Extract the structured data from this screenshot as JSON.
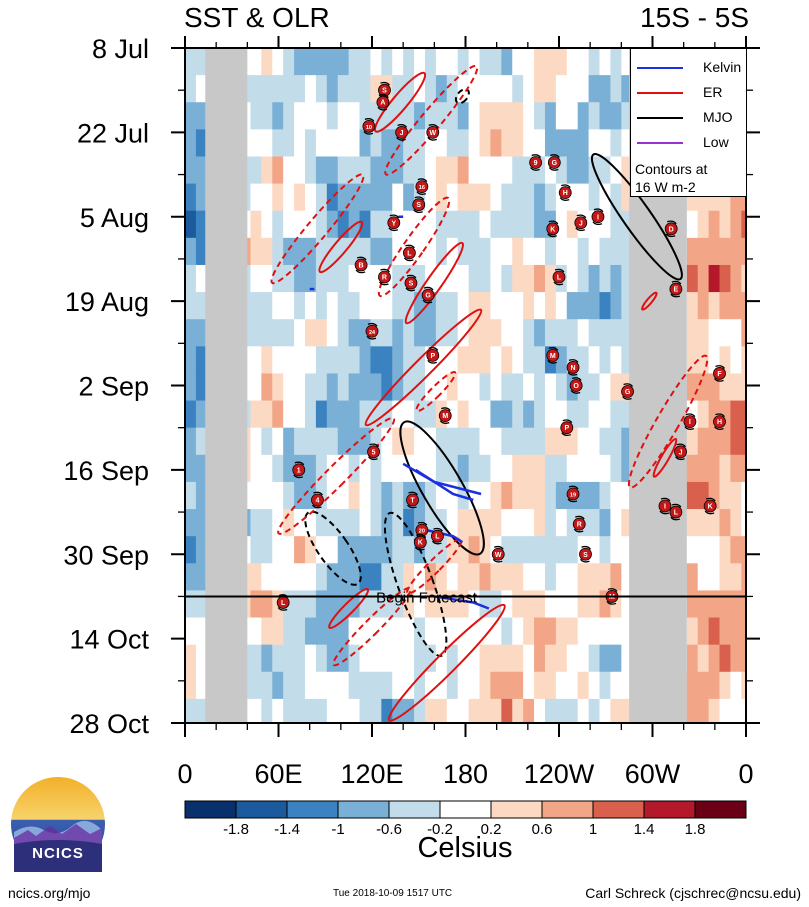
{
  "header": {
    "title_left": "SST & OLR",
    "title_right": "15S - 5S"
  },
  "colors": {
    "kelvin": "#1a2fe0",
    "er": "#e01010",
    "mjo": "#000000",
    "low": "#9b30d0",
    "land_mask": "#c8c8c8",
    "forecast_line": "#000000",
    "tc_marker": "#c41818"
  },
  "legend": {
    "items": [
      {
        "name": "Kelvin",
        "color": "#1a2fe0"
      },
      {
        "name": "ER",
        "color": "#e01010"
      },
      {
        "name": "MJO",
        "color": "#000000"
      },
      {
        "name": "Low",
        "color": "#9b30d0"
      }
    ],
    "note_line1": "Contours at",
    "note_line2": "16 W m-2"
  },
  "annotations": {
    "forecast_label": "Begin Forecast"
  },
  "colorbar": {
    "unit": "Celsius",
    "tick_labels": [
      "-1.8",
      "-1.4",
      "-1",
      "-0.6",
      "-0.2",
      "0.2",
      "0.6",
      "1",
      "1.4",
      "1.8"
    ],
    "colors": [
      "#08306b",
      "#1c5a9e",
      "#3b82c1",
      "#7ab0d6",
      "#c3dcea",
      "#ffffff",
      "#fcd9c3",
      "#f2a687",
      "#d9604d",
      "#b3182b",
      "#6a0015"
    ]
  },
  "logo": {
    "text": "NCICS"
  },
  "footer": {
    "left": "ncics.org/mjo",
    "center": "Tue 2018-10-09 1517 UTC",
    "right": "Carl Schreck (cjschrec@ncsu.edu)"
  },
  "chart_data": {
    "type": "heatmap",
    "title": "SST & OLR",
    "subtitle": "15S - 5S",
    "xlabel": "",
    "ylabel": "",
    "x_ticks": [
      {
        "lon": 0,
        "label": "0"
      },
      {
        "lon": 60,
        "label": "60E"
      },
      {
        "lon": 120,
        "label": "120E"
      },
      {
        "lon": 180,
        "label": "180"
      },
      {
        "lon": 240,
        "label": "120W"
      },
      {
        "lon": 300,
        "label": "60W"
      },
      {
        "lon": 360,
        "label": "0"
      }
    ],
    "y_ticks": [
      {
        "day": 0,
        "label": "8 Jul"
      },
      {
        "day": 14,
        "label": "22 Jul"
      },
      {
        "day": 28,
        "label": "5 Aug"
      },
      {
        "day": 42,
        "label": "19 Aug"
      },
      {
        "day": 56,
        "label": "2 Sep"
      },
      {
        "day": 70,
        "label": "16 Sep"
      },
      {
        "day": 84,
        "label": "30 Sep"
      },
      {
        "day": 98,
        "label": "14 Oct"
      },
      {
        "day": 112,
        "label": "28 Oct"
      }
    ],
    "xlim": [
      0,
      360
    ],
    "ylim_days": [
      0,
      112
    ],
    "forecast_start_day": 91,
    "colorbar_levels": [
      -1.8,
      -1.4,
      -1,
      -0.6,
      -0.2,
      0.2,
      0.6,
      1,
      1.4,
      1.8
    ],
    "masked_longitudes": [
      [
        13,
        40
      ],
      [
        285,
        322
      ]
    ],
    "contours": [
      {
        "type": "MJO",
        "style": "solid",
        "lon": 290,
        "day": 28,
        "w": 11,
        "h": 28,
        "rot": -35
      },
      {
        "type": "MJO",
        "style": "solid",
        "lon": 165,
        "day": 73,
        "w": 16,
        "h": 28,
        "rot": -30
      },
      {
        "type": "MJO",
        "style": "dashed",
        "lon": 95,
        "day": 83,
        "w": 12,
        "h": 16,
        "rot": -35
      },
      {
        "type": "MJO",
        "style": "dashed",
        "lon": 148,
        "day": 89,
        "w": 14,
        "h": 28,
        "rot": -20
      },
      {
        "type": "MJO",
        "style": "dashed",
        "lon": 178,
        "day": 8,
        "w": 4,
        "h": 3,
        "rot": 40
      },
      {
        "type": "ER",
        "style": "solid",
        "lon": 138,
        "day": 9,
        "w": 6,
        "h": 14,
        "rot": 40
      },
      {
        "type": "ER",
        "style": "dashed",
        "lon": 158,
        "day": 12,
        "w": 8,
        "h": 26,
        "rot": 40
      },
      {
        "type": "ER",
        "style": "dashed",
        "lon": 85,
        "day": 30,
        "w": 8,
        "h": 26,
        "rot": 40
      },
      {
        "type": "ER",
        "style": "solid",
        "lon": 100,
        "day": 33,
        "w": 5,
        "h": 12,
        "rot": 40
      },
      {
        "type": "ER",
        "style": "dashed",
        "lon": 147,
        "day": 33,
        "w": 8,
        "h": 22,
        "rot": 35
      },
      {
        "type": "ER",
        "style": "solid",
        "lon": 160,
        "day": 39,
        "w": 6,
        "h": 18,
        "rot": 35
      },
      {
        "type": "ER",
        "style": "solid",
        "lon": 153,
        "day": 53,
        "w": 7,
        "h": 30,
        "rot": 45
      },
      {
        "type": "ER",
        "style": "dashed",
        "lon": 161,
        "day": 57,
        "w": 4,
        "h": 10,
        "rot": 45
      },
      {
        "type": "ER",
        "style": "dashed",
        "lon": 97,
        "day": 71,
        "w": 8,
        "h": 30,
        "rot": 45
      },
      {
        "type": "ER",
        "style": "dashed",
        "lon": 310,
        "day": 62,
        "w": 9,
        "h": 28,
        "rot": 30
      },
      {
        "type": "ER",
        "style": "solid",
        "lon": 308,
        "day": 68,
        "w": 3,
        "h": 8,
        "rot": 30
      },
      {
        "type": "ER",
        "style": "solid",
        "lon": 298,
        "day": 42,
        "w": 2,
        "h": 4,
        "rot": 40
      },
      {
        "type": "ER",
        "style": "solid",
        "lon": 105,
        "day": 93,
        "w": 4,
        "h": 10,
        "rot": 45
      },
      {
        "type": "ER",
        "style": "dashed",
        "lon": 120,
        "day": 96,
        "w": 6,
        "h": 20,
        "rot": 45
      },
      {
        "type": "ER",
        "style": "solid",
        "lon": 168,
        "day": 102,
        "w": 8,
        "h": 30,
        "rot": 45
      },
      {
        "type": "ER",
        "style": "dashed",
        "lon": 160,
        "day": 86,
        "w": 5,
        "h": 14,
        "rot": 45
      }
    ],
    "kelvin_paths": [
      [
        [
          140,
          69
        ],
        [
          160,
          72
        ],
        [
          190,
          74
        ]
      ],
      [
        [
          148,
          70
        ],
        [
          172,
          74
        ],
        [
          185,
          75
        ]
      ],
      [
        [
          155,
          80
        ],
        [
          172,
          81
        ],
        [
          178,
          82
        ]
      ],
      [
        [
          160,
          91
        ],
        [
          185,
          92
        ],
        [
          195,
          93
        ]
      ],
      [
        [
          137,
          28
        ],
        [
          140,
          28
        ]
      ],
      [
        [
          80,
          40
        ],
        [
          83,
          40
        ]
      ]
    ],
    "tropical_cyclones": [
      {
        "label": "S",
        "lon": 128,
        "day": 7
      },
      {
        "label": "A",
        "lon": 127,
        "day": 9
      },
      {
        "label": "10",
        "lon": 118,
        "day": 13
      },
      {
        "label": "J",
        "lon": 139,
        "day": 14
      },
      {
        "label": "W",
        "lon": 159,
        "day": 14
      },
      {
        "label": "16",
        "lon": 152,
        "day": 23
      },
      {
        "label": "S",
        "lon": 150,
        "day": 26
      },
      {
        "label": "Y",
        "lon": 134,
        "day": 29
      },
      {
        "label": "L",
        "lon": 144,
        "day": 34
      },
      {
        "label": "B",
        "lon": 113,
        "day": 36
      },
      {
        "label": "R",
        "lon": 128,
        "day": 38
      },
      {
        "label": "S",
        "lon": 145,
        "day": 39
      },
      {
        "label": "G",
        "lon": 156,
        "day": 41
      },
      {
        "label": "24",
        "lon": 120,
        "day": 47
      },
      {
        "label": "P",
        "lon": 159,
        "day": 51
      },
      {
        "label": "M",
        "lon": 167,
        "day": 61
      },
      {
        "label": "5",
        "lon": 121,
        "day": 67
      },
      {
        "label": "1",
        "lon": 73,
        "day": 70
      },
      {
        "label": "T",
        "lon": 146,
        "day": 75
      },
      {
        "label": "4",
        "lon": 85,
        "day": 75
      },
      {
        "label": "20",
        "lon": 152,
        "day": 80
      },
      {
        "label": "K",
        "lon": 151,
        "day": 82
      },
      {
        "label": "L",
        "lon": 162,
        "day": 81
      },
      {
        "label": "W",
        "lon": 201,
        "day": 84
      },
      {
        "label": "L",
        "lon": 63,
        "day": 92
      },
      {
        "label": "9",
        "lon": 225,
        "day": 19
      },
      {
        "label": "G",
        "lon": 237,
        "day": 19
      },
      {
        "label": "H",
        "lon": 244,
        "day": 24
      },
      {
        "label": "K",
        "lon": 236,
        "day": 30
      },
      {
        "label": "J",
        "lon": 254,
        "day": 29
      },
      {
        "label": "I",
        "lon": 265,
        "day": 28
      },
      {
        "label": "L",
        "lon": 240,
        "day": 38
      },
      {
        "label": "M",
        "lon": 236,
        "day": 51
      },
      {
        "label": "N",
        "lon": 249,
        "day": 53
      },
      {
        "label": "O",
        "lon": 251,
        "day": 56
      },
      {
        "label": "P",
        "lon": 245,
        "day": 63
      },
      {
        "label": "19",
        "lon": 249,
        "day": 74
      },
      {
        "label": "R",
        "lon": 253,
        "day": 79
      },
      {
        "label": "S",
        "lon": 257,
        "day": 84
      },
      {
        "label": "G",
        "lon": 284,
        "day": 57
      },
      {
        "label": "D",
        "lon": 312,
        "day": 30
      },
      {
        "label": "E",
        "lon": 315,
        "day": 40
      },
      {
        "label": "F",
        "lon": 343,
        "day": 54
      },
      {
        "label": "I",
        "lon": 324,
        "day": 62
      },
      {
        "label": "H",
        "lon": 343,
        "day": 62
      },
      {
        "label": "J",
        "lon": 318,
        "day": 67
      },
      {
        "label": "I",
        "lon": 308,
        "day": 76
      },
      {
        "label": "L",
        "lon": 315,
        "day": 77
      },
      {
        "label": "K",
        "lon": 337,
        "day": 76
      },
      {
        "label": "M",
        "lon": 274,
        "day": 91
      }
    ]
  }
}
